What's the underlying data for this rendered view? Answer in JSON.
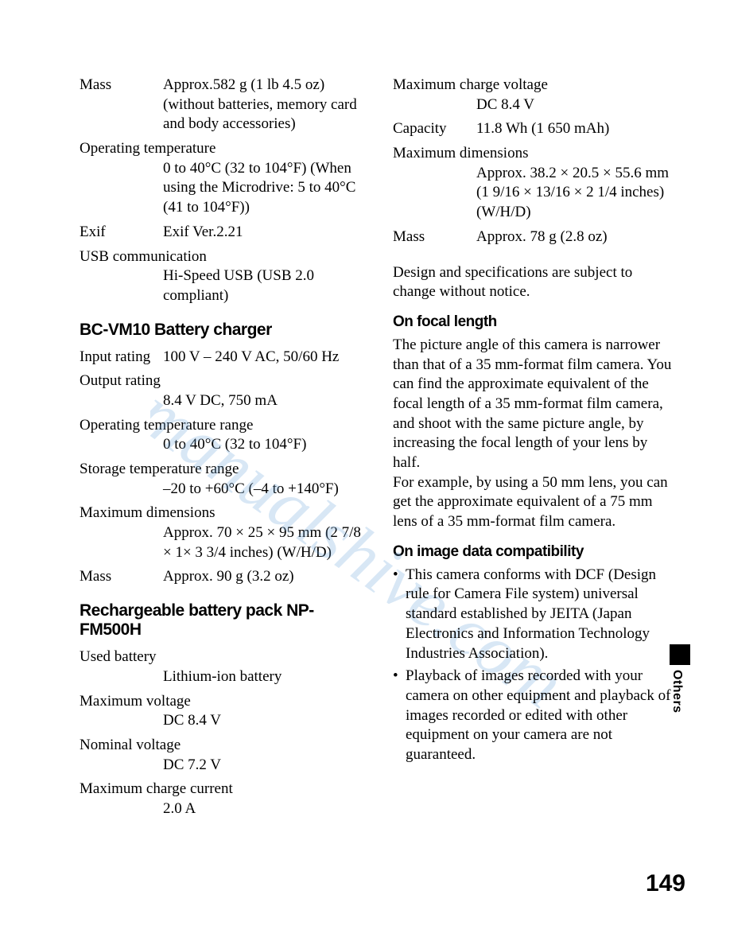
{
  "left": {
    "specs1": [
      {
        "label": "Mass",
        "value": "Approx.582 g (1 lb 4.5 oz) (without batteries, memory card and body accessories)"
      },
      {
        "label": "Operating temperature",
        "value": "0 to 40°C (32 to 104°F) (When using the Microdrive: 5 to 40°C (41 to 104°F))",
        "stack": true
      },
      {
        "label": "Exif",
        "value": "Exif Ver.2.21"
      },
      {
        "label": "USB communication",
        "value": "Hi-Speed USB (USB 2.0 compliant)",
        "stack": true
      }
    ],
    "heading1": "BC-VM10 Battery charger",
    "specs2": [
      {
        "label": "Input rating",
        "value": "100 V – 240 V AC, 50/60 Hz"
      },
      {
        "label": "Output rating",
        "value": "8.4 V DC, 750 mA",
        "stack": true
      },
      {
        "label": "Operating temperature range",
        "value": "0 to 40°C (32 to 104°F)",
        "stack": true
      },
      {
        "label": "Storage temperature range",
        "value": "–20 to +60°C (–4 to +140°F)",
        "stack": true
      },
      {
        "label": "Maximum dimensions",
        "value": "Approx. 70 × 25 × 95 mm (2 7/8 × 1× 3 3/4 inches) (W/H/D)",
        "stack": true
      },
      {
        "label": "Mass",
        "value": "Approx. 90 g (3.2 oz)"
      }
    ],
    "heading2": "Rechargeable battery pack NP-FM500H",
    "specs3": [
      {
        "label": "Used battery",
        "value": "Lithium-ion battery",
        "stack": true
      },
      {
        "label": "Maximum voltage",
        "value": "DC 8.4 V",
        "stack": true
      },
      {
        "label": "Nominal voltage",
        "value": "DC 7.2 V",
        "stack": true
      },
      {
        "label": "Maximum charge current",
        "value": "2.0 A",
        "stack": true
      }
    ]
  },
  "right": {
    "specs1": [
      {
        "label": "Maximum charge voltage",
        "value": "DC 8.4 V",
        "stack": true
      },
      {
        "label": "Capacity",
        "value": "11.8 Wh (1 650 mAh)"
      },
      {
        "label": "Maximum dimensions",
        "value": "Approx. 38.2 × 20.5 × 55.6 mm (1 9/16 × 13/16 × 2 1/4 inches) (W/H/D)",
        "stack": true
      },
      {
        "label": "Mass",
        "value": "Approx. 78 g (2.8 oz)"
      }
    ],
    "notice": "Design and specifications are subject to change without notice.",
    "heading1": "On focal length",
    "para1": "The picture angle of this camera is narrower than that of a 35 mm-format film camera. You can find the approximate equivalent of the focal length of a 35 mm-format film camera, and shoot with the same picture angle, by increasing the focal length of your lens by half.\nFor example, by using a 50 mm lens, you can get the approximate equivalent of a 75 mm lens of a 35 mm-format film camera.",
    "heading2": "On image data compatibility",
    "bullets": [
      "This camera conforms with DCF (Design rule for Camera File system) universal standard established by JEITA (Japan Electronics and Information Technology Industries Association).",
      "Playback of images recorded with your camera on other equipment and playback of images recorded or edited with other equipment on your camera are not guaranteed."
    ]
  },
  "side_label": "Others",
  "page_number": "149",
  "watermark_color": "#6fa8dc"
}
